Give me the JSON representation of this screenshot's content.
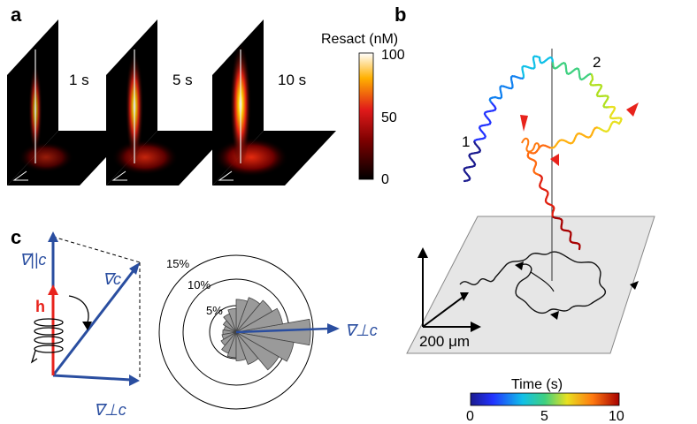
{
  "panels": {
    "a": "a",
    "b": "b",
    "c": "c"
  },
  "panel_a": {
    "time_labels": [
      "1 s",
      "5 s",
      "10 s"
    ],
    "intensity": [
      0.4,
      0.75,
      1.0
    ],
    "colorbar": {
      "title": "Resact (nM)",
      "ticks": [
        "100",
        "50",
        "0"
      ],
      "range": [
        0,
        100
      ]
    }
  },
  "panel_b": {
    "path_labels": [
      "1",
      "2"
    ],
    "scale": "200 μm",
    "colorbar": {
      "title": "Time (s)",
      "ticks": [
        "0",
        "5",
        "10"
      ],
      "range": [
        0,
        10
      ]
    },
    "colors": {
      "marker": "#e8231c",
      "plane": "#e6e6e6"
    }
  },
  "panel_c": {
    "vectors": {
      "parallel": "∇||c",
      "grad": "∇c",
      "perp": "∇⊥c",
      "h": "h"
    },
    "rose": {
      "rings": [
        "15%",
        "10%",
        "5%"
      ],
      "axis_label": "∇⊥c"
    },
    "colors": {
      "vector": "#2a4ea0",
      "h": "#e8231c"
    }
  }
}
